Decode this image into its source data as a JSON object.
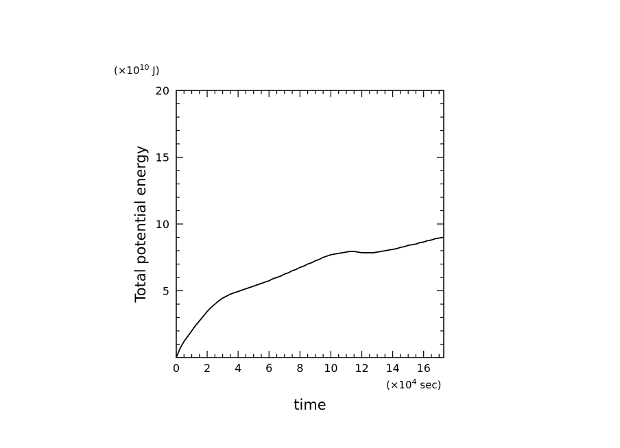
{
  "chart_data": {
    "type": "line",
    "xlabel": "time",
    "ylabel": "Total potential energy",
    "x_unit_prefix": "(×10",
    "x_unit_exp": "4",
    "x_unit_suffix": " sec)",
    "y_unit_prefix": "(×10",
    "y_unit_exp": "10",
    "y_unit_suffix": " J)",
    "xlim": [
      0,
      17.3
    ],
    "ylim": [
      0,
      20
    ],
    "x_ticks": [
      0,
      2,
      4,
      6,
      8,
      10,
      12,
      14,
      16
    ],
    "y_ticks": [
      5,
      10,
      15,
      20
    ],
    "x_tick_labels": [
      "0",
      "2",
      "4",
      "6",
      "8",
      "10",
      "12",
      "14",
      "16"
    ],
    "y_tick_labels": [
      "5",
      "10",
      "15",
      "20"
    ],
    "grid": false,
    "series": [
      {
        "x": [
          0,
          0.25,
          0.5,
          0.75,
          1,
          1.25,
          1.5,
          1.75,
          2,
          2.25,
          2.5,
          2.75,
          3,
          3.25,
          3.5,
          3.75,
          4,
          4.25,
          4.5,
          4.75,
          5,
          5.25,
          5.5,
          5.75,
          6,
          6.25,
          6.5,
          6.75,
          7,
          7.25,
          7.5,
          7.75,
          8,
          8.25,
          8.5,
          8.75,
          9,
          9.25,
          9.5,
          9.75,
          10,
          10.25,
          10.5,
          10.75,
          11,
          11.25,
          11.5,
          11.75,
          12,
          12.25,
          12.5,
          12.75,
          13,
          13.25,
          13.5,
          13.75,
          14,
          14.25,
          14.5,
          14.75,
          15,
          15.25,
          15.5,
          15.75,
          16,
          16.25,
          16.5,
          16.75,
          17,
          17.3
        ],
        "y": [
          0.0,
          0.7,
          1.2,
          1.6,
          2.0,
          2.4,
          2.75,
          3.1,
          3.45,
          3.75,
          4.0,
          4.25,
          4.45,
          4.6,
          4.75,
          4.85,
          4.95,
          5.05,
          5.15,
          5.25,
          5.35,
          5.45,
          5.55,
          5.65,
          5.75,
          5.9,
          6.0,
          6.1,
          6.25,
          6.35,
          6.5,
          6.6,
          6.75,
          6.85,
          7.0,
          7.1,
          7.25,
          7.35,
          7.5,
          7.6,
          7.7,
          7.75,
          7.8,
          7.85,
          7.9,
          7.95,
          7.95,
          7.9,
          7.85,
          7.85,
          7.85,
          7.85,
          7.9,
          7.95,
          8.0,
          8.05,
          8.1,
          8.15,
          8.25,
          8.3,
          8.4,
          8.45,
          8.5,
          8.6,
          8.65,
          8.75,
          8.8,
          8.9,
          8.95,
          9.0
        ]
      }
    ]
  }
}
